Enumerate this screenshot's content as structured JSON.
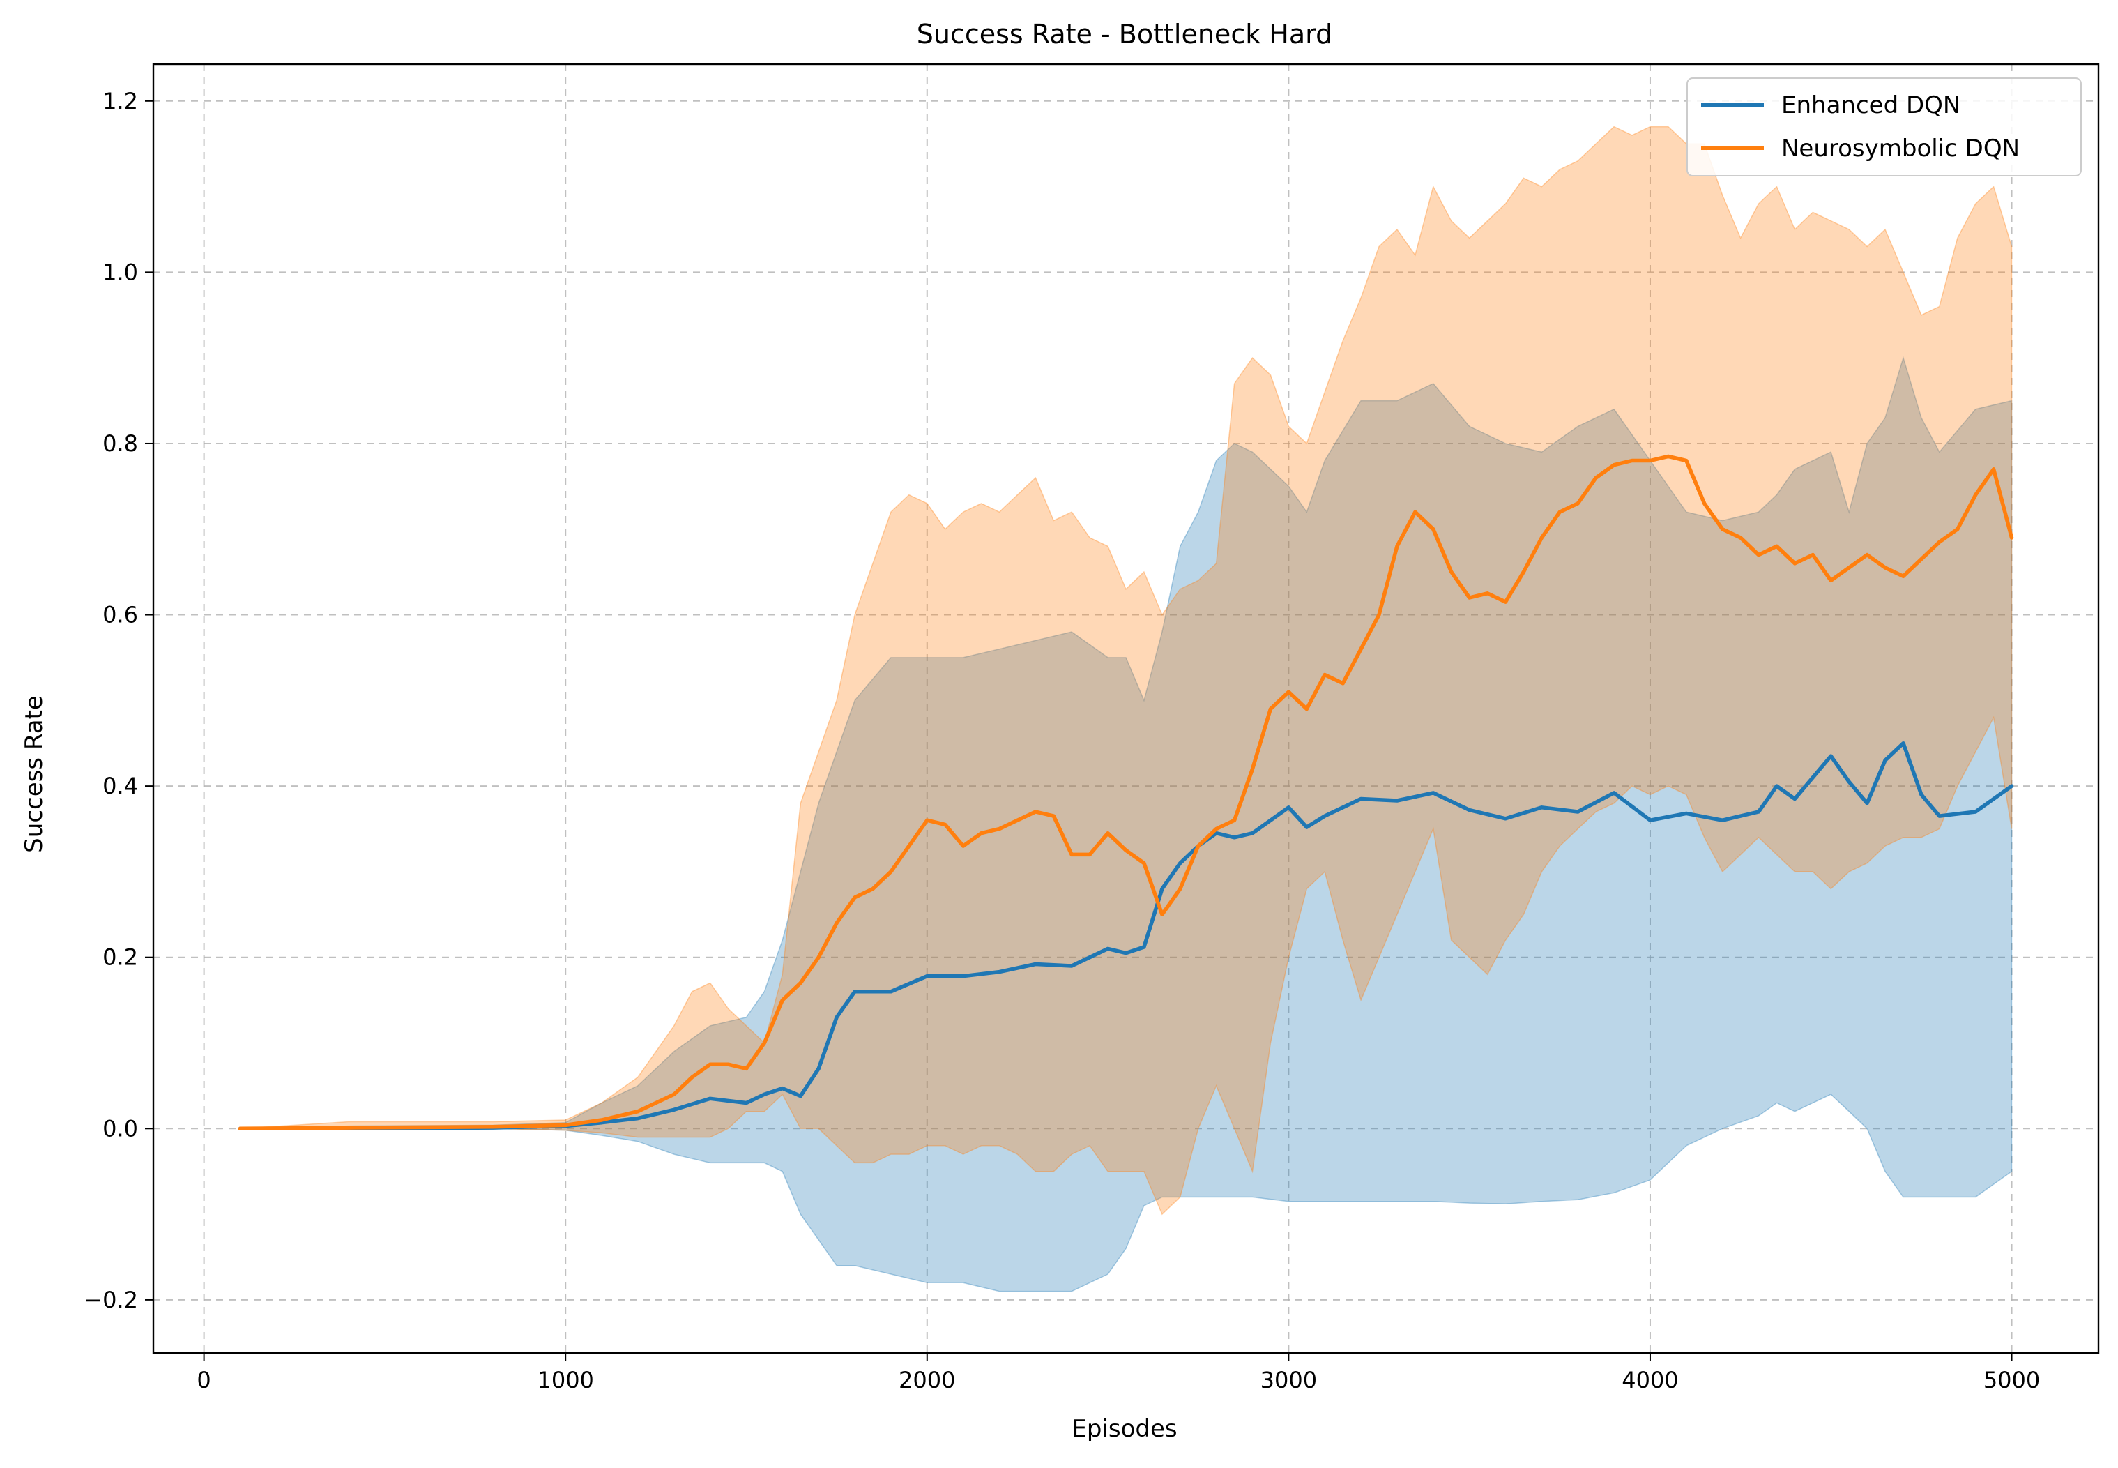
{
  "chart_data": {
    "type": "line",
    "title": "Success Rate - Bottleneck Hard",
    "xlabel": "Episodes",
    "ylabel": "Success Rate",
    "xlim": [
      -140,
      5240
    ],
    "ylim": [
      -0.262,
      1.243
    ],
    "xticks": [
      0,
      1000,
      2000,
      3000,
      4000,
      5000
    ],
    "xtick_labels": [
      "0",
      "1000",
      "2000",
      "3000",
      "4000",
      "5000"
    ],
    "yticks": [
      -0.2,
      0.0,
      0.2,
      0.4,
      0.6,
      0.8,
      1.0,
      1.2
    ],
    "ytick_labels": [
      "−0.2",
      "0.0",
      "0.2",
      "0.4",
      "0.6",
      "0.8",
      "1.0",
      "1.2"
    ],
    "grid": true,
    "legend_position": "top-right",
    "series": [
      {
        "name": "Enhanced DQN",
        "color": "#1f77b4",
        "x": [
          100,
          400,
          800,
          1000,
          1100,
          1200,
          1300,
          1400,
          1500,
          1550,
          1600,
          1650,
          1700,
          1750,
          1800,
          1900,
          2000,
          2100,
          2200,
          2300,
          2400,
          2500,
          2550,
          2600,
          2650,
          2700,
          2750,
          2800,
          2850,
          2900,
          3000,
          3050,
          3100,
          3200,
          3300,
          3400,
          3500,
          3600,
          3700,
          3800,
          3900,
          4000,
          4100,
          4200,
          4300,
          4350,
          4400,
          4500,
          4550,
          4600,
          4650,
          4700,
          4750,
          4800,
          4900,
          5000
        ],
        "y": [
          0.0,
          0.0,
          0.001,
          0.003,
          0.007,
          0.012,
          0.022,
          0.035,
          0.03,
          0.04,
          0.047,
          0.038,
          0.07,
          0.13,
          0.16,
          0.16,
          0.178,
          0.178,
          0.183,
          0.192,
          0.19,
          0.21,
          0.205,
          0.212,
          0.28,
          0.31,
          0.33,
          0.345,
          0.34,
          0.345,
          0.375,
          0.352,
          0.365,
          0.385,
          0.383,
          0.392,
          0.372,
          0.362,
          0.375,
          0.37,
          0.392,
          0.36,
          0.368,
          0.36,
          0.37,
          0.4,
          0.385,
          0.435,
          0.405,
          0.38,
          0.43,
          0.45,
          0.39,
          0.365,
          0.37,
          0.4
        ],
        "band_upper": [
          0.0,
          0.003,
          0.004,
          0.007,
          0.03,
          0.05,
          0.09,
          0.12,
          0.13,
          0.16,
          0.22,
          0.3,
          0.38,
          0.44,
          0.5,
          0.55,
          0.55,
          0.55,
          0.56,
          0.57,
          0.58,
          0.55,
          0.55,
          0.5,
          0.58,
          0.68,
          0.72,
          0.78,
          0.8,
          0.79,
          0.75,
          0.72,
          0.78,
          0.85,
          0.85,
          0.87,
          0.82,
          0.8,
          0.79,
          0.82,
          0.84,
          0.78,
          0.72,
          0.71,
          0.72,
          0.74,
          0.77,
          0.79,
          0.72,
          0.8,
          0.83,
          0.9,
          0.83,
          0.79,
          0.84,
          0.85
        ],
        "band_lower": [
          0.0,
          0.0,
          0.0,
          -0.002,
          -0.008,
          -0.015,
          -0.03,
          -0.04,
          -0.04,
          -0.04,
          -0.05,
          -0.1,
          -0.13,
          -0.16,
          -0.16,
          -0.17,
          -0.18,
          -0.18,
          -0.19,
          -0.19,
          -0.19,
          -0.17,
          -0.14,
          -0.09,
          -0.08,
          -0.08,
          -0.08,
          -0.08,
          -0.08,
          -0.08,
          -0.085,
          -0.085,
          -0.085,
          -0.085,
          -0.085,
          -0.085,
          -0.087,
          -0.088,
          -0.085,
          -0.083,
          -0.075,
          -0.06,
          -0.02,
          0.0,
          0.015,
          0.03,
          0.02,
          0.04,
          0.02,
          0.0,
          -0.05,
          -0.08,
          -0.08,
          -0.08,
          -0.08,
          -0.05
        ]
      },
      {
        "name": "Neurosymbolic DQN",
        "color": "#ff7f0e",
        "x": [
          100,
          400,
          800,
          1000,
          1100,
          1200,
          1300,
          1350,
          1400,
          1450,
          1500,
          1550,
          1600,
          1650,
          1700,
          1750,
          1800,
          1850,
          1900,
          1950,
          2000,
          2050,
          2100,
          2150,
          2200,
          2250,
          2300,
          2350,
          2400,
          2450,
          2500,
          2550,
          2600,
          2650,
          2700,
          2750,
          2800,
          2850,
          2900,
          2950,
          3000,
          3050,
          3100,
          3150,
          3200,
          3250,
          3300,
          3350,
          3400,
          3450,
          3500,
          3550,
          3600,
          3650,
          3700,
          3750,
          3800,
          3850,
          3900,
          3950,
          4000,
          4050,
          4100,
          4150,
          4200,
          4250,
          4300,
          4350,
          4400,
          4450,
          4500,
          4550,
          4600,
          4650,
          4700,
          4750,
          4800,
          4850,
          4900,
          4950,
          5000
        ],
        "y": [
          0.0,
          0.001,
          0.002,
          0.004,
          0.01,
          0.02,
          0.04,
          0.06,
          0.075,
          0.075,
          0.07,
          0.1,
          0.15,
          0.17,
          0.2,
          0.24,
          0.27,
          0.28,
          0.3,
          0.33,
          0.36,
          0.355,
          0.33,
          0.345,
          0.35,
          0.36,
          0.37,
          0.365,
          0.32,
          0.32,
          0.345,
          0.325,
          0.31,
          0.25,
          0.28,
          0.33,
          0.35,
          0.36,
          0.42,
          0.49,
          0.51,
          0.49,
          0.53,
          0.52,
          0.56,
          0.6,
          0.68,
          0.72,
          0.7,
          0.65,
          0.62,
          0.625,
          0.615,
          0.65,
          0.69,
          0.72,
          0.73,
          0.76,
          0.775,
          0.78,
          0.78,
          0.785,
          0.78,
          0.73,
          0.7,
          0.69,
          0.67,
          0.68,
          0.66,
          0.67,
          0.64,
          0.655,
          0.67,
          0.655,
          0.645,
          0.665,
          0.685,
          0.7,
          0.74,
          0.77,
          0.69
        ],
        "band_upper": [
          0.0,
          0.008,
          0.008,
          0.01,
          0.03,
          0.06,
          0.12,
          0.16,
          0.17,
          0.14,
          0.12,
          0.1,
          0.18,
          0.38,
          0.44,
          0.5,
          0.6,
          0.66,
          0.72,
          0.74,
          0.73,
          0.7,
          0.72,
          0.73,
          0.72,
          0.74,
          0.76,
          0.71,
          0.72,
          0.69,
          0.68,
          0.63,
          0.65,
          0.6,
          0.63,
          0.64,
          0.66,
          0.87,
          0.9,
          0.88,
          0.82,
          0.8,
          0.86,
          0.92,
          0.97,
          1.03,
          1.05,
          1.02,
          1.1,
          1.06,
          1.04,
          1.06,
          1.08,
          1.11,
          1.1,
          1.12,
          1.13,
          1.15,
          1.17,
          1.16,
          1.17,
          1.17,
          1.15,
          1.15,
          1.09,
          1.04,
          1.08,
          1.1,
          1.05,
          1.07,
          1.06,
          1.05,
          1.03,
          1.05,
          1.0,
          0.95,
          0.96,
          1.04,
          1.08,
          1.1,
          1.03
        ],
        "band_lower": [
          0.0,
          0.0,
          0.0,
          -0.002,
          -0.005,
          -0.01,
          -0.01,
          -0.01,
          -0.01,
          0.0,
          0.02,
          0.02,
          0.04,
          0.0,
          0.0,
          -0.02,
          -0.04,
          -0.04,
          -0.03,
          -0.03,
          -0.02,
          -0.02,
          -0.03,
          -0.02,
          -0.02,
          -0.03,
          -0.05,
          -0.05,
          -0.03,
          -0.02,
          -0.05,
          -0.05,
          -0.05,
          -0.1,
          -0.08,
          0.0,
          0.05,
          0.0,
          -0.05,
          0.1,
          0.2,
          0.28,
          0.3,
          0.22,
          0.15,
          0.2,
          0.25,
          0.3,
          0.35,
          0.22,
          0.2,
          0.18,
          0.22,
          0.25,
          0.3,
          0.33,
          0.35,
          0.37,
          0.38,
          0.4,
          0.39,
          0.4,
          0.39,
          0.34,
          0.3,
          0.32,
          0.34,
          0.32,
          0.3,
          0.3,
          0.28,
          0.3,
          0.31,
          0.33,
          0.34,
          0.34,
          0.35,
          0.4,
          0.44,
          0.48,
          0.35
        ]
      }
    ]
  }
}
